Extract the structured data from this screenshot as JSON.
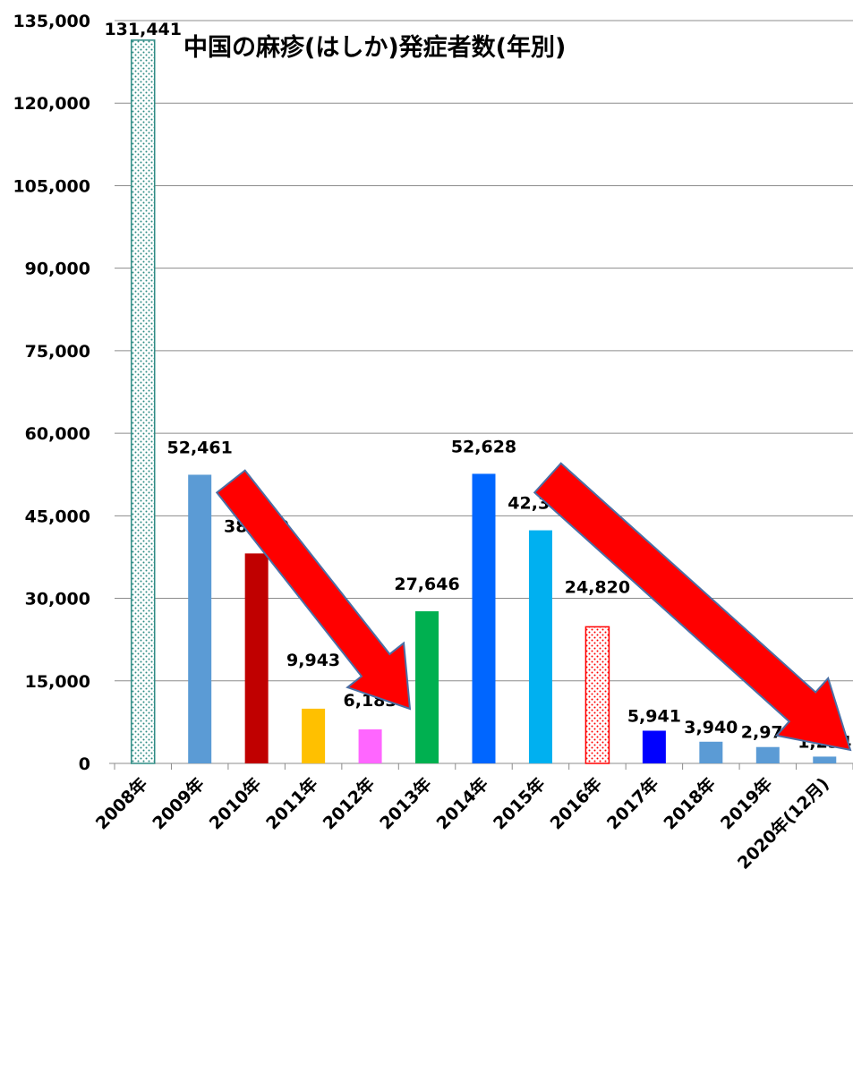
{
  "chart_data": {
    "type": "bar",
    "title": "中国の麻疹(はしか)発症者数(年別)",
    "xlabel": "",
    "ylabel": "",
    "ylim": [
      0,
      135000
    ],
    "yticks": [
      0,
      15000,
      30000,
      45000,
      60000,
      75000,
      90000,
      105000,
      120000,
      135000
    ],
    "ytick_labels": [
      "0",
      "15,000",
      "30,000",
      "45,000",
      "60,000",
      "75,000",
      "90,000",
      "105,000",
      "120,000",
      "135,000"
    ],
    "grid": true,
    "legend": "none",
    "categories": [
      "2008年",
      "2009年",
      "2010年",
      "2011年",
      "2012年",
      "2013年",
      "2014年",
      "2015年",
      "2016年",
      "2017年",
      "2018年",
      "2019年",
      "2020年(12月)"
    ],
    "values": [
      131441,
      52461,
      38159,
      9943,
      6183,
      27646,
      52628,
      42361,
      24820,
      5941,
      3940,
      2974,
      1234
    ],
    "value_labels": [
      "131,441",
      "52,461",
      "38,159",
      "9,943",
      "6,183",
      "27,646",
      "52,628",
      "42,361",
      "24,820",
      "5,941",
      "3,940",
      "2,974",
      "1,234"
    ],
    "bar_styles": [
      {
        "fill": "dots",
        "color": "#2e8b84"
      },
      {
        "fill": "solid",
        "color": "#5b9bd5"
      },
      {
        "fill": "solid",
        "color": "#c00000"
      },
      {
        "fill": "solid",
        "color": "#ffc000"
      },
      {
        "fill": "solid",
        "color": "#ff66ff"
      },
      {
        "fill": "solid",
        "color": "#00b050"
      },
      {
        "fill": "solid",
        "color": "#0066ff"
      },
      {
        "fill": "solid",
        "color": "#00b0f0"
      },
      {
        "fill": "dots",
        "color": "#ff0000"
      },
      {
        "fill": "solid",
        "color": "#0000ff"
      },
      {
        "fill": "solid",
        "color": "#5b9bd5"
      },
      {
        "fill": "solid",
        "color": "#5b9bd5"
      },
      {
        "fill": "solid",
        "color": "#5b9bd5"
      }
    ],
    "annotations": [
      {
        "type": "arrow",
        "shape": "red-block-arrow-down-right",
        "from_year": "2009年",
        "to_year": "2013年",
        "color": "#ff0000"
      },
      {
        "type": "arrow",
        "shape": "red-block-arrow-down-right",
        "from_year": "2015年",
        "to_year": "2020年(12月)",
        "color": "#ff0000"
      }
    ]
  }
}
